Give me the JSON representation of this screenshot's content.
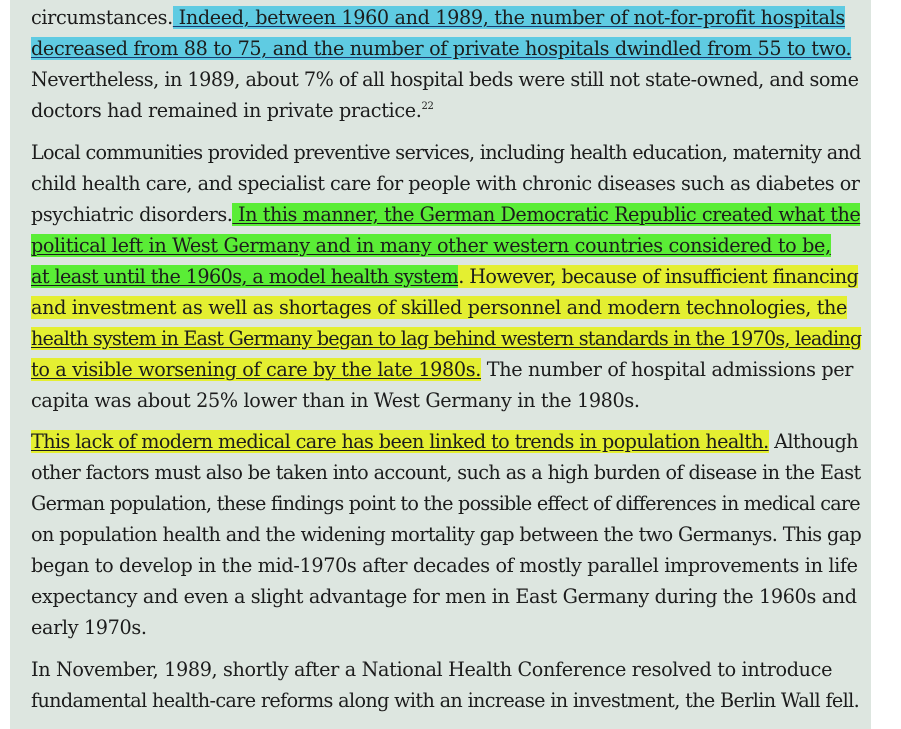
{
  "colors": {
    "page_background": "#dde6e0",
    "highlight_cyan": "#40c4e2",
    "highlight_green": "#48ee1e",
    "highlight_yellow": "#e4f01e"
  },
  "paragraph1": {
    "l1a": "circumstances.",
    "l1b": " Indeed, between 1960 and 1989, the number of not-for-profit hospitals",
    "l2a": "decreased from 88 to 75, and the number of private hospitals dwindled from 55 to two.",
    "l3": "Nevertheless, in 1989, about 7% of all hospital beds were still not state-owned, and some",
    "l4": "doctors had remained in private practice.",
    "l4_ref": "22"
  },
  "paragraph2": {
    "l1": "Local communities provided preventive services, including health education, maternity and",
    "l2": "child health care, and specialist care for people with chronic diseases such as diabetes or",
    "l3a": "psychiatric disorders.",
    "l3b": " In this manner, the German Democratic Republic created what the",
    "l4a": "political left in West Germany and in many other western countries considered to be,",
    "l5a": "at least until the 1960s, a model health system",
    "l5b": ". However, because of insufficient financing",
    "l6": "and investment as well as shortages of skilled personnel and modern technologies, the",
    "l7": "health system in East Germany began to lag behind western standards in the 1970s, leading",
    "l8a": "to a visible worsening of care by the late 1980s.",
    "l8b": " The number of hospital admissions per",
    "l9": "capita was about 25% lower than in West Germany in the 1980s."
  },
  "paragraph3": {
    "l1a": "This lack of modern medical care has been linked to trends in population health.",
    "l1b": " Although",
    "l2": "other factors must also be taken into account, such as a high burden of disease in the East",
    "l3": "German population, these findings point to the possible effect of differences in medical care",
    "l4": "on population health and the widening mortality gap between the two Germanys. This gap",
    "l5": "began to develop in the mid-1970s after decades of mostly parallel improvements in life",
    "l6": "expectancy and even a slight advantage for men in East Germany during the 1960s and",
    "l7": "early 1970s."
  },
  "paragraph4": {
    "l1": "In November, 1989, shortly after a National Health Conference resolved to introduce",
    "l2": "fundamental health-care reforms along with an increase in investment, the Berlin Wall fell."
  }
}
